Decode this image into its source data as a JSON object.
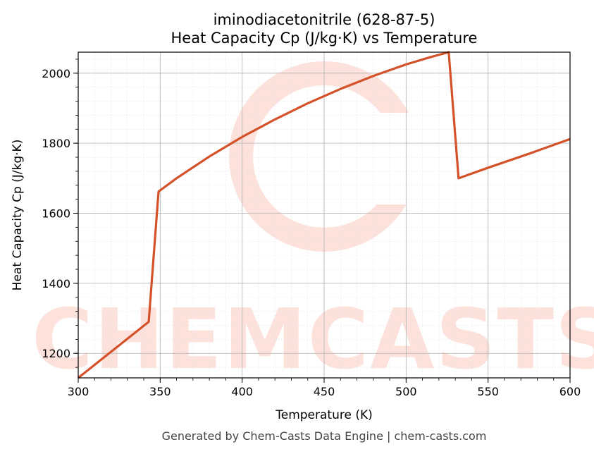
{
  "chart_data": {
    "type": "line",
    "title": "iminodiacetonitrile (628-87-5)",
    "subtitle": "Heat Capacity Cp (J/kg·K) vs Temperature",
    "xlabel": "Temperature (K)",
    "ylabel": "Heat Capacity Cp (J/kg·K)",
    "xlim": [
      300,
      600
    ],
    "ylim": [
      1130,
      2060
    ],
    "xticks": [
      300,
      350,
      400,
      450,
      500,
      550,
      600
    ],
    "yticks": [
      1200,
      1400,
      1600,
      1800,
      2000
    ],
    "grid": true,
    "line_color": "#d4522a",
    "series": [
      {
        "x": [
          300,
          343,
          349,
          360,
          380,
          400,
          420,
          440,
          460,
          480,
          500,
          515,
          526,
          532,
          550,
          575,
          600
        ],
        "y": [
          1130,
          1290,
          1662,
          1700,
          1762,
          1818,
          1868,
          1914,
          1955,
          1992,
          2025,
          2046,
          2060,
          1700,
          1730,
          1770,
          1812
        ]
      }
    ]
  },
  "watermark": {
    "text": "CHEMCASTS",
    "color": "#fde2dc"
  },
  "footer": "Generated by Chem-Casts Data Engine | chem-casts.com"
}
